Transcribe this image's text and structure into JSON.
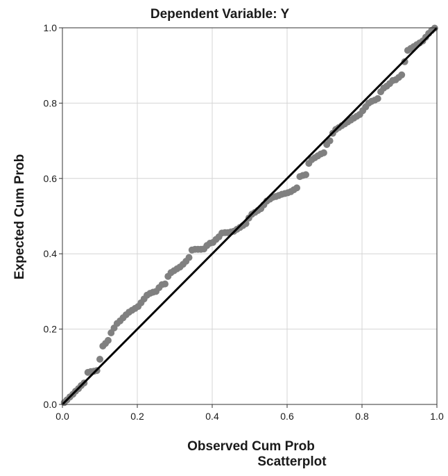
{
  "chart_data": {
    "type": "scatter",
    "title": "Dependent Variable: Y",
    "xlabel": "Observed Cum Prob",
    "ylabel": "Expected Cum Prob",
    "caption": "Scatterplot",
    "xlim": [
      0,
      1
    ],
    "ylim": [
      0,
      1
    ],
    "xticks": [
      0.0,
      0.2,
      0.4,
      0.6,
      0.8,
      1.0
    ],
    "yticks": [
      0.0,
      0.2,
      0.4,
      0.6,
      0.8,
      1.0
    ],
    "xtick_labels": [
      "0.0",
      "0.2",
      "0.4",
      "0.6",
      "0.8",
      "1.0"
    ],
    "ytick_labels": [
      "0.0",
      "0.2",
      "0.4",
      "0.6",
      "0.8",
      "1.0"
    ],
    "grid": true,
    "reference_line": {
      "from": [
        0,
        0
      ],
      "to": [
        1,
        1
      ],
      "color": "#000000"
    },
    "point_color": "#808080",
    "points": [
      [
        0.005,
        0.005
      ],
      [
        0.012,
        0.012
      ],
      [
        0.02,
        0.02
      ],
      [
        0.028,
        0.027
      ],
      [
        0.035,
        0.035
      ],
      [
        0.043,
        0.042
      ],
      [
        0.05,
        0.05
      ],
      [
        0.058,
        0.057
      ],
      [
        0.068,
        0.085
      ],
      [
        0.076,
        0.087
      ],
      [
        0.084,
        0.088
      ],
      [
        0.092,
        0.09
      ],
      [
        0.1,
        0.12
      ],
      [
        0.108,
        0.155
      ],
      [
        0.115,
        0.162
      ],
      [
        0.122,
        0.17
      ],
      [
        0.13,
        0.19
      ],
      [
        0.138,
        0.203
      ],
      [
        0.146,
        0.215
      ],
      [
        0.154,
        0.222
      ],
      [
        0.162,
        0.23
      ],
      [
        0.17,
        0.238
      ],
      [
        0.178,
        0.245
      ],
      [
        0.186,
        0.25
      ],
      [
        0.194,
        0.255
      ],
      [
        0.202,
        0.26
      ],
      [
        0.21,
        0.27
      ],
      [
        0.218,
        0.28
      ],
      [
        0.226,
        0.29
      ],
      [
        0.234,
        0.295
      ],
      [
        0.242,
        0.298
      ],
      [
        0.25,
        0.3
      ],
      [
        0.258,
        0.31
      ],
      [
        0.266,
        0.318
      ],
      [
        0.274,
        0.32
      ],
      [
        0.282,
        0.34
      ],
      [
        0.29,
        0.35
      ],
      [
        0.298,
        0.355
      ],
      [
        0.306,
        0.36
      ],
      [
        0.314,
        0.365
      ],
      [
        0.322,
        0.372
      ],
      [
        0.33,
        0.38
      ],
      [
        0.338,
        0.39
      ],
      [
        0.346,
        0.41
      ],
      [
        0.354,
        0.412
      ],
      [
        0.362,
        0.412
      ],
      [
        0.37,
        0.412
      ],
      [
        0.378,
        0.413
      ],
      [
        0.386,
        0.422
      ],
      [
        0.394,
        0.428
      ],
      [
        0.402,
        0.43
      ],
      [
        0.41,
        0.438
      ],
      [
        0.418,
        0.445
      ],
      [
        0.426,
        0.455
      ],
      [
        0.434,
        0.456
      ],
      [
        0.442,
        0.456
      ],
      [
        0.45,
        0.458
      ],
      [
        0.458,
        0.46
      ],
      [
        0.466,
        0.465
      ],
      [
        0.474,
        0.47
      ],
      [
        0.482,
        0.475
      ],
      [
        0.49,
        0.48
      ],
      [
        0.498,
        0.495
      ],
      [
        0.506,
        0.505
      ],
      [
        0.514,
        0.51
      ],
      [
        0.522,
        0.515
      ],
      [
        0.53,
        0.52
      ],
      [
        0.538,
        0.53
      ],
      [
        0.546,
        0.54
      ],
      [
        0.554,
        0.545
      ],
      [
        0.562,
        0.55
      ],
      [
        0.57,
        0.552
      ],
      [
        0.578,
        0.555
      ],
      [
        0.586,
        0.558
      ],
      [
        0.594,
        0.56
      ],
      [
        0.602,
        0.562
      ],
      [
        0.61,
        0.565
      ],
      [
        0.618,
        0.57
      ],
      [
        0.626,
        0.575
      ],
      [
        0.634,
        0.605
      ],
      [
        0.642,
        0.608
      ],
      [
        0.65,
        0.61
      ],
      [
        0.658,
        0.64
      ],
      [
        0.666,
        0.65
      ],
      [
        0.674,
        0.655
      ],
      [
        0.682,
        0.66
      ],
      [
        0.69,
        0.665
      ],
      [
        0.698,
        0.668
      ],
      [
        0.706,
        0.69
      ],
      [
        0.714,
        0.7
      ],
      [
        0.722,
        0.72
      ],
      [
        0.73,
        0.73
      ],
      [
        0.738,
        0.735
      ],
      [
        0.746,
        0.74
      ],
      [
        0.754,
        0.745
      ],
      [
        0.762,
        0.75
      ],
      [
        0.77,
        0.755
      ],
      [
        0.778,
        0.76
      ],
      [
        0.786,
        0.765
      ],
      [
        0.794,
        0.77
      ],
      [
        0.802,
        0.78
      ],
      [
        0.81,
        0.79
      ],
      [
        0.818,
        0.8
      ],
      [
        0.826,
        0.805
      ],
      [
        0.834,
        0.808
      ],
      [
        0.842,
        0.812
      ],
      [
        0.85,
        0.83
      ],
      [
        0.858,
        0.84
      ],
      [
        0.866,
        0.845
      ],
      [
        0.874,
        0.852
      ],
      [
        0.882,
        0.86
      ],
      [
        0.89,
        0.862
      ],
      [
        0.898,
        0.868
      ],
      [
        0.906,
        0.875
      ],
      [
        0.914,
        0.91
      ],
      [
        0.922,
        0.94
      ],
      [
        0.93,
        0.945
      ],
      [
        0.938,
        0.95
      ],
      [
        0.946,
        0.955
      ],
      [
        0.954,
        0.96
      ],
      [
        0.962,
        0.965
      ],
      [
        0.97,
        0.975
      ],
      [
        0.978,
        0.985
      ],
      [
        0.986,
        0.993
      ],
      [
        0.994,
        0.999
      ]
    ]
  }
}
